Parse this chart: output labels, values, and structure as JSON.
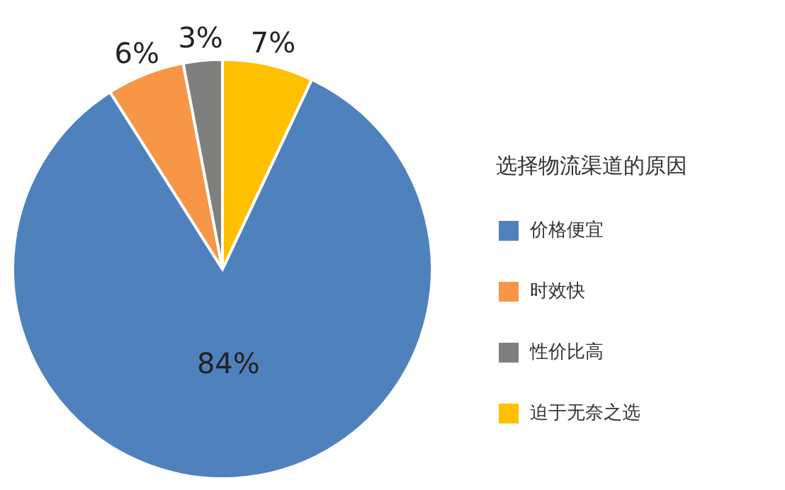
{
  "chart_data": {
    "type": "pie",
    "legend_title": "选择物流渠道的原因",
    "categories": [
      "价格便宜",
      "时效快",
      "性价比高",
      "迫于无奈之选"
    ],
    "values": [
      84,
      6,
      3,
      7
    ],
    "colors": [
      "#4f81bd",
      "#f79646",
      "#7f7f7f",
      "#ffc000"
    ],
    "value_labels": [
      "84%",
      "6%",
      "3%",
      "7%"
    ],
    "legend": "right"
  }
}
